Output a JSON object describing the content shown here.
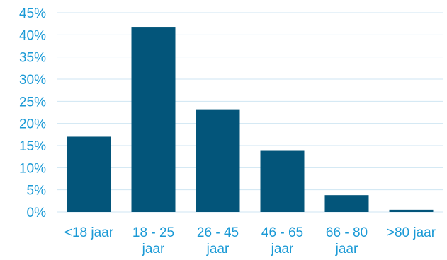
{
  "chart_data": {
    "type": "bar",
    "categories": [
      [
        "<18 jaar"
      ],
      [
        "18 - 25",
        "jaar"
      ],
      [
        "26 - 45",
        "jaar"
      ],
      [
        "46 - 65",
        "jaar"
      ],
      [
        "66 - 80",
        "jaar"
      ],
      [
        ">80 jaar"
      ]
    ],
    "values": [
      17,
      41.8,
      23.2,
      13.8,
      3.8,
      0.5
    ],
    "title": "",
    "xlabel": "",
    "ylabel": "",
    "ylim": [
      0,
      45
    ],
    "yticks": [
      0,
      5,
      10,
      15,
      20,
      25,
      30,
      35,
      40,
      45
    ],
    "ytick_labels": [
      "0%",
      "5%",
      "10%",
      "15%",
      "20%",
      "25%",
      "30%",
      "35%",
      "40%",
      "45%"
    ],
    "grid": true,
    "legend": "none",
    "colors": {
      "bar": "#03557a",
      "grid": "#cfe6f3",
      "tick_text": "#1b9ad6"
    }
  }
}
